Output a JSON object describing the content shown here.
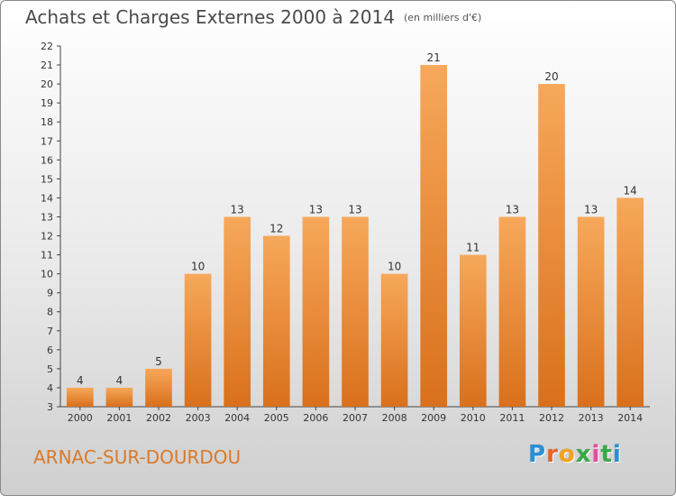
{
  "header": {
    "title": "Achats et Charges Externes 2000 à 2014",
    "subtitle": "(en milliers d'€)"
  },
  "footer": {
    "commune": "ARNAC-SUR-DOURDOU",
    "logo_letters": [
      "P",
      "r",
      "o",
      "x",
      "i",
      "t",
      "i"
    ],
    "logo_colors": [
      "#2a8fd6",
      "#e8632a",
      "#f2a21b",
      "#3aa84a",
      "#e84aa0",
      "#3aa84a",
      "#2a8fd6"
    ]
  },
  "chart_data": {
    "type": "bar",
    "title": "Achats et Charges Externes 2000 à 2014",
    "subtitle": "(en milliers d'€)",
    "xlabel": "",
    "ylabel": "",
    "categories": [
      "2000",
      "2001",
      "2002",
      "2003",
      "2004",
      "2005",
      "2006",
      "2007",
      "2008",
      "2009",
      "2010",
      "2011",
      "2012",
      "2013",
      "2014"
    ],
    "values": [
      4,
      4,
      5,
      10,
      13,
      12,
      13,
      13,
      10,
      21,
      11,
      13,
      20,
      13,
      14
    ],
    "ylim": [
      3,
      22
    ],
    "yticks": [
      3,
      4,
      5,
      6,
      7,
      8,
      9,
      10,
      11,
      12,
      13,
      14,
      15,
      16,
      17,
      18,
      19,
      20,
      21,
      22
    ],
    "grid": false,
    "bar_color_top": "#f7a85a",
    "bar_color_bottom": "#d9701c"
  }
}
